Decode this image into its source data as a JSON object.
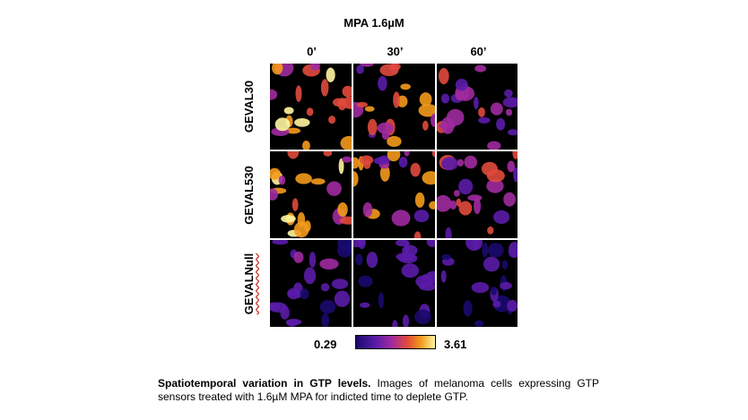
{
  "figure": {
    "title": "MPA 1.6µM",
    "time_points": [
      "0’",
      "30’",
      "60’"
    ],
    "rows": [
      {
        "label": "GEVAL30"
      },
      {
        "label": "GEVAL530"
      },
      {
        "label": "GEVALNull"
      }
    ],
    "colorbar": {
      "min_label": "0.29",
      "max_label": "3.61",
      "colormap": [
        "#1a0a6e",
        "#5a1ca8",
        "#a02aa0",
        "#e04a3c",
        "#f49a1c",
        "#fff6a0"
      ]
    }
  },
  "caption": {
    "bold_text": "Spatiotemporal variation in GTP levels.",
    "text": " Images of melanoma cells expressing GTP sensors treated with 1.6µM MPA for indicted time to deplete GTP."
  }
}
